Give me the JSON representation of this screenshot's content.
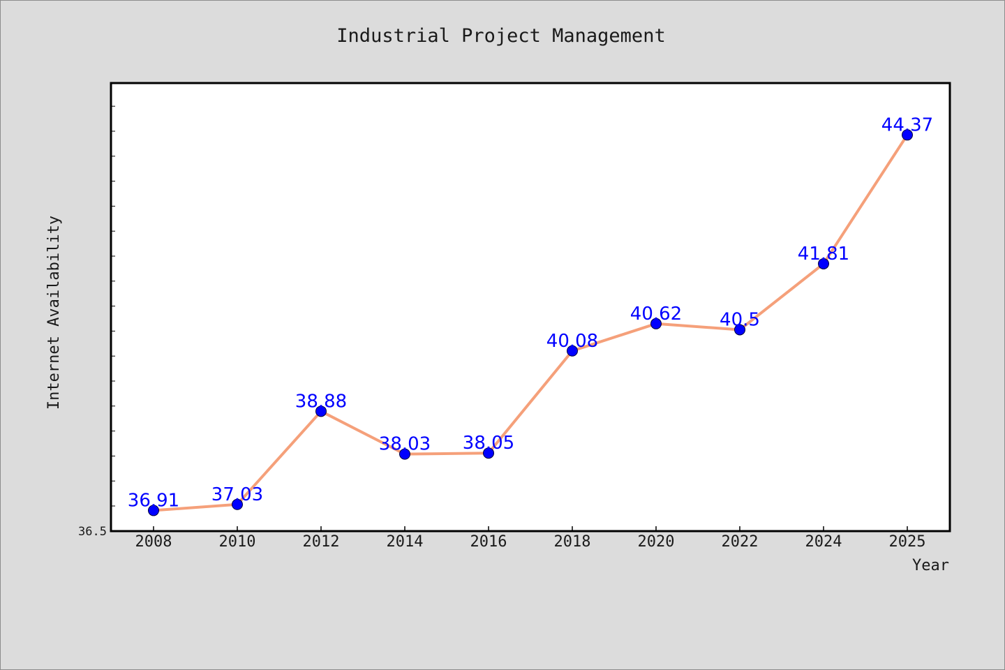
{
  "chart_data": {
    "type": "line",
    "title": "Industrial Project Management",
    "xlabel": "Year",
    "ylabel": "Internet Availability",
    "categories": [
      "2008",
      "2010",
      "2012",
      "2014",
      "2016",
      "2018",
      "2020",
      "2022",
      "2024",
      "2025"
    ],
    "series": [
      {
        "values": [
          36.91,
          37.03,
          38.88,
          38.03,
          38.05,
          40.08,
          40.62,
          40.5,
          41.81,
          44.37
        ]
      }
    ],
    "data_labels": [
      "36.91",
      "37.03",
      "38.88",
      "38.03",
      "38.05",
      "40.08",
      "40.62",
      "40.5",
      "41.81",
      "44.37"
    ],
    "y_tick_labels": [
      "36.5"
    ],
    "ylim": [
      36.5,
      45.4
    ],
    "grid": false,
    "colors": {
      "line": "#f5a07a",
      "marker": "#0000ff",
      "data_label": "#0000ff",
      "plot_background": "#ffffff",
      "figure_background": "#dcdcdc"
    }
  }
}
